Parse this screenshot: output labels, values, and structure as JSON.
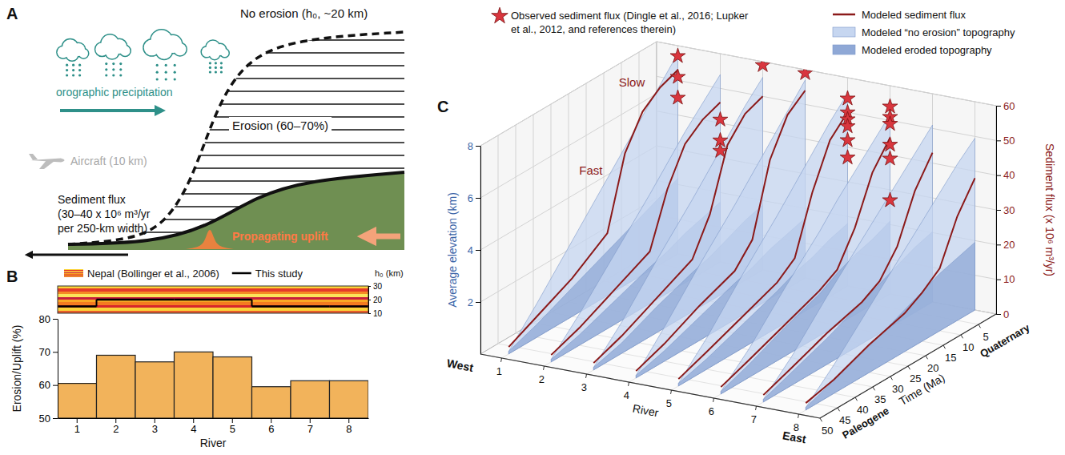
{
  "chart_data": [
    {
      "panel": "A",
      "type": "diagram",
      "labels": {
        "no_erosion": "No erosion (h₀, ~20 km)",
        "precipitation": "orographic precipitation",
        "erosion": "Erosion (60–70%)",
        "aircraft": "Aircraft (10 km)",
        "sediment_flux": [
          "Sediment flux",
          "(30–40 x 10⁶ m³/yr",
          "per 250-km width)"
        ],
        "uplift": "Propagating uplift"
      }
    },
    {
      "panel": "B",
      "type": "bar",
      "x_label": "River",
      "y_label": "Erosion/Uplift (%)",
      "categories": [
        "1",
        "2",
        "3",
        "4",
        "5",
        "6",
        "7",
        "8"
      ],
      "values": [
        60.5,
        69,
        67,
        70,
        68.5,
        59.5,
        61.3,
        61.3
      ],
      "color": "#f2b35b",
      "ylim": [
        50,
        80
      ],
      "yticks": [
        50,
        60,
        70,
        80
      ],
      "legend": "top",
      "h0": {
        "label": "h₀ (km)",
        "ylim": [
          10,
          30
        ],
        "yticks": [
          10,
          20,
          30
        ],
        "series": [
          {
            "name": "Nepal (Bollinger et al., 2006)",
            "type": "band",
            "low": 10,
            "high": 30
          },
          {
            "name": "This study",
            "type": "line",
            "color": "#000000",
            "values": [
              15,
              20,
              20,
              20,
              20,
              15,
              15,
              15
            ]
          }
        ]
      }
    },
    {
      "panel": "C",
      "type": "line_3d",
      "x_label": "Time (Ma)",
      "xlim": [
        50,
        0
      ],
      "xticks": [
        50,
        45,
        40,
        35,
        30,
        25,
        20,
        15,
        10,
        5
      ],
      "periods": [
        {
          "label": "Paleogene",
          "value": 41
        },
        {
          "label": "Quaternary",
          "value": 1.5
        }
      ],
      "river_label": "River",
      "categories": [
        "1",
        "2",
        "3",
        "4",
        "5",
        "6",
        "7",
        "8"
      ],
      "direction_labels": [
        "West",
        "East"
      ],
      "y_label": "Average elevation (km)",
      "ylim": [
        0,
        8
      ],
      "yticks": [
        2,
        4,
        6,
        8
      ],
      "y2_label": "Sediment flux (x 10⁶ m³/yr)",
      "y2lim": [
        0,
        60
      ],
      "y2ticks": [
        0,
        10,
        20,
        30,
        40,
        50,
        60
      ],
      "grid": true,
      "legend": "top",
      "x": [
        48,
        40,
        30,
        20,
        15,
        10,
        5,
        0
      ],
      "series": [
        {
          "name": "Modeled sediment flux",
          "type": "line",
          "color": "#8b1a1a",
          "axis": "y2",
          "values": [
            [
              2,
              6,
              11,
              18,
              38,
              47,
              51,
              53
            ],
            [
              2,
              5,
              10,
              15,
              30,
              40,
              44,
              46
            ],
            [
              2,
              5,
              10,
              15,
              25,
              42,
              48,
              50
            ],
            [
              2,
              5,
              10,
              14,
              20,
              40,
              50,
              54
            ],
            [
              2,
              5,
              9,
              13,
              17,
              33,
              45,
              50
            ],
            [
              2,
              5,
              9,
              13,
              16,
              25,
              38,
              45
            ],
            [
              2,
              5,
              9,
              12,
              15,
              22,
              35,
              43
            ],
            [
              2,
              4,
              8,
              11,
              14,
              18,
              30,
              38
            ]
          ]
        },
        {
          "name": "Modeled “no erosion” topography",
          "type": "area",
          "color": "#c6d6f0",
          "values": [
            [
              0.1,
              1.3,
              2.9,
              4.5,
              5.3,
              6.1,
              6.9,
              7.7
            ],
            [
              0.1,
              1.2,
              2.7,
              4.2,
              5.0,
              5.8,
              6.5,
              7.2
            ],
            [
              0.1,
              1.2,
              2.8,
              4.3,
              5.1,
              5.9,
              6.7,
              7.4
            ],
            [
              0.1,
              1.3,
              2.9,
              4.4,
              5.2,
              6.0,
              6.8,
              7.6
            ],
            [
              0.1,
              1.2,
              2.8,
              4.3,
              5.1,
              5.9,
              6.7,
              7.4
            ],
            [
              0.1,
              1.1,
              2.6,
              4.0,
              4.8,
              5.5,
              6.2,
              6.9
            ],
            [
              0.1,
              1.1,
              2.6,
              4.0,
              4.7,
              5.4,
              6.1,
              6.8
            ],
            [
              0.1,
              1.1,
              2.5,
              3.9,
              4.6,
              5.3,
              6.0,
              6.6
            ]
          ]
        },
        {
          "name": "Modeled eroded topography",
          "type": "area",
          "color": "#8fa8d6",
          "values": [
            [
              0.1,
              0.5,
              1.1,
              1.7,
              2.0,
              2.3,
              2.6,
              2.9
            ],
            [
              0.1,
              0.4,
              0.9,
              1.4,
              1.6,
              1.9,
              2.1,
              2.3
            ],
            [
              0.1,
              0.4,
              1.0,
              1.5,
              1.7,
              2.0,
              2.3,
              2.5
            ],
            [
              0.1,
              0.4,
              0.9,
              1.4,
              1.6,
              1.9,
              2.1,
              2.3
            ],
            [
              0.1,
              0.4,
              0.9,
              1.4,
              1.7,
              1.9,
              2.2,
              2.4
            ],
            [
              0.1,
              0.5,
              1.1,
              1.6,
              2.0,
              2.3,
              2.5,
              2.8
            ],
            [
              0.1,
              0.5,
              1.0,
              1.6,
              1.9,
              2.2,
              2.5,
              2.7
            ],
            [
              0.1,
              0.5,
              1.0,
              1.6,
              1.9,
              2.2,
              2.4,
              2.6
            ]
          ]
        },
        {
          "name": "Observed sediment flux (Dingle et al., 2016; Lupker et al., 2012, and references therein)",
          "type": "scatter",
          "marker": "star",
          "color": "#d9363e",
          "axis": "y2",
          "x": 0,
          "values": [
            [
              57,
              51,
              45
            ],
            [
              41,
              35,
              32
            ],
            [
              59
            ],
            [
              59
            ],
            [
              54,
              50,
              48,
              46,
              42,
              37
            ],
            [
              54,
              51,
              49,
              43,
              39,
              27
            ],
            [],
            []
          ]
        }
      ],
      "annotations": [
        {
          "text": "Fast",
          "river": "1",
          "x": 20,
          "y": 34
        },
        {
          "text": "Slow",
          "river": "1",
          "x": 8,
          "y": 52
        }
      ]
    }
  ]
}
